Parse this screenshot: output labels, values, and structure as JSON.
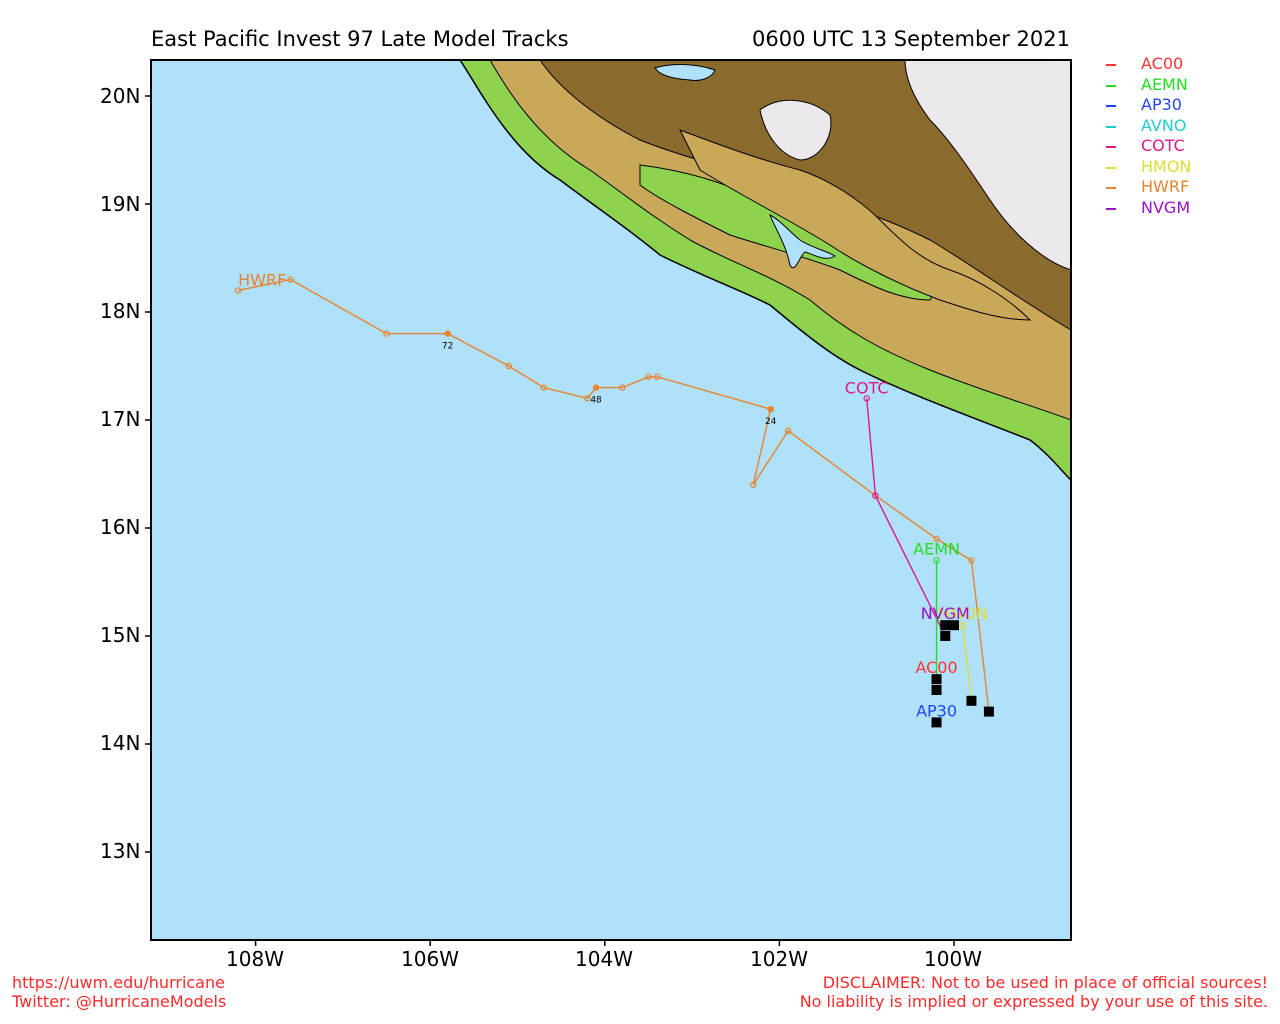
{
  "title_left": "East Pacific Invest 97 Late Model Tracks",
  "title_right": "0600 UTC 13 September 2021",
  "colors": {
    "ocean": "#b0e1fb",
    "land_green": "#8ed34e",
    "land_tan": "#c9a85a",
    "land_brown": "#8b6a2e",
    "land_snow": "#ece8ec"
  },
  "y_axis_labels": [
    "20N",
    "19N",
    "18N",
    "17N",
    "16N",
    "15N",
    "14N",
    "13N"
  ],
  "x_axis_labels": [
    "108W",
    "106W",
    "104W",
    "102W",
    "100W"
  ],
  "legend": [
    {
      "name": "AC00",
      "color": "#ff3333"
    },
    {
      "name": "AEMN",
      "color": "#22dd22"
    },
    {
      "name": "AP30",
      "color": "#2244ff"
    },
    {
      "name": "AVNO",
      "color": "#22cccc"
    },
    {
      "name": "COTC",
      "color": "#e0168c"
    },
    {
      "name": "HMON",
      "color": "#dddd33"
    },
    {
      "name": "HWRF",
      "color": "#e8832f"
    },
    {
      "name": "NVGM",
      "color": "#9a11cc"
    }
  ],
  "tracks": [
    {
      "name": "HWRF",
      "color": "#e8832f",
      "label": "HWRF",
      "points": [
        [
          -99.6,
          14.3
        ],
        [
          -99.8,
          15.7
        ],
        [
          -100.2,
          15.9
        ],
        [
          -100.9,
          16.3
        ],
        [
          -101.9,
          16.9
        ],
        [
          -102.3,
          16.4
        ],
        [
          -102.1,
          17.1
        ],
        [
          -103.4,
          17.4
        ],
        [
          -103.5,
          17.4
        ],
        [
          -103.8,
          17.3
        ],
        [
          -104.1,
          17.3
        ],
        [
          -104.2,
          17.2
        ],
        [
          -104.7,
          17.3
        ],
        [
          -105.1,
          17.5
        ],
        [
          -105.8,
          17.8
        ],
        [
          -106.5,
          17.8
        ],
        [
          -107.6,
          18.3
        ],
        [
          -108.2,
          18.2
        ]
      ],
      "hour_marks": [
        {
          "hour": "24",
          "lon": -102.1,
          "lat": 17.1
        },
        {
          "hour": "48",
          "lon": -104.1,
          "lat": 17.3
        },
        {
          "hour": "72",
          "lon": -105.8,
          "lat": 17.8
        }
      ]
    },
    {
      "name": "COTC",
      "color": "#e0168c",
      "label": "COTC",
      "points": [
        [
          -100.1,
          15.0
        ],
        [
          -100.9,
          16.3
        ],
        [
          -101.0,
          17.2
        ]
      ],
      "hour_marks": []
    },
    {
      "name": "AEMN",
      "color": "#22dd22",
      "label": "AEMN",
      "points": [
        [
          -100.2,
          14.6
        ],
        [
          -100.2,
          15.7
        ]
      ],
      "hour_marks": []
    },
    {
      "name": "HMON",
      "color": "#dddd33",
      "label": "HMON",
      "points": [
        [
          -99.8,
          14.4
        ],
        [
          -99.9,
          15.1
        ]
      ],
      "hour_marks": []
    },
    {
      "name": "NVGM",
      "color": "#9a11cc",
      "label": "NVGM",
      "points": [
        [
          -100.0,
          15.1
        ],
        [
          -100.1,
          15.1
        ]
      ],
      "hour_marks": []
    },
    {
      "name": "AC00",
      "color": "#ff3333",
      "label": "AC00",
      "points": [
        [
          -100.2,
          14.5
        ]
      ],
      "hour_marks": []
    },
    {
      "name": "AP30",
      "color": "#2244ff",
      "label": "AP30",
      "points": [
        [
          -100.2,
          14.2
        ]
      ],
      "hour_marks": []
    }
  ],
  "start_positions": [
    [
      -99.6,
      14.3
    ],
    [
      -99.8,
      14.4
    ],
    [
      -100.2,
      14.2
    ],
    [
      -100.2,
      14.5
    ],
    [
      -100.2,
      14.6
    ],
    [
      -100.1,
      15.0
    ],
    [
      -100.1,
      15.1
    ],
    [
      -100.0,
      15.1
    ]
  ],
  "footer_left": [
    "https://uwm.edu/hurricane",
    "Twitter: @HurricaneModels"
  ],
  "footer_right": [
    "DISCLAIMER: Not to be used in place of official sources!",
    "No liability is implied or expressed by your use of this site."
  ]
}
